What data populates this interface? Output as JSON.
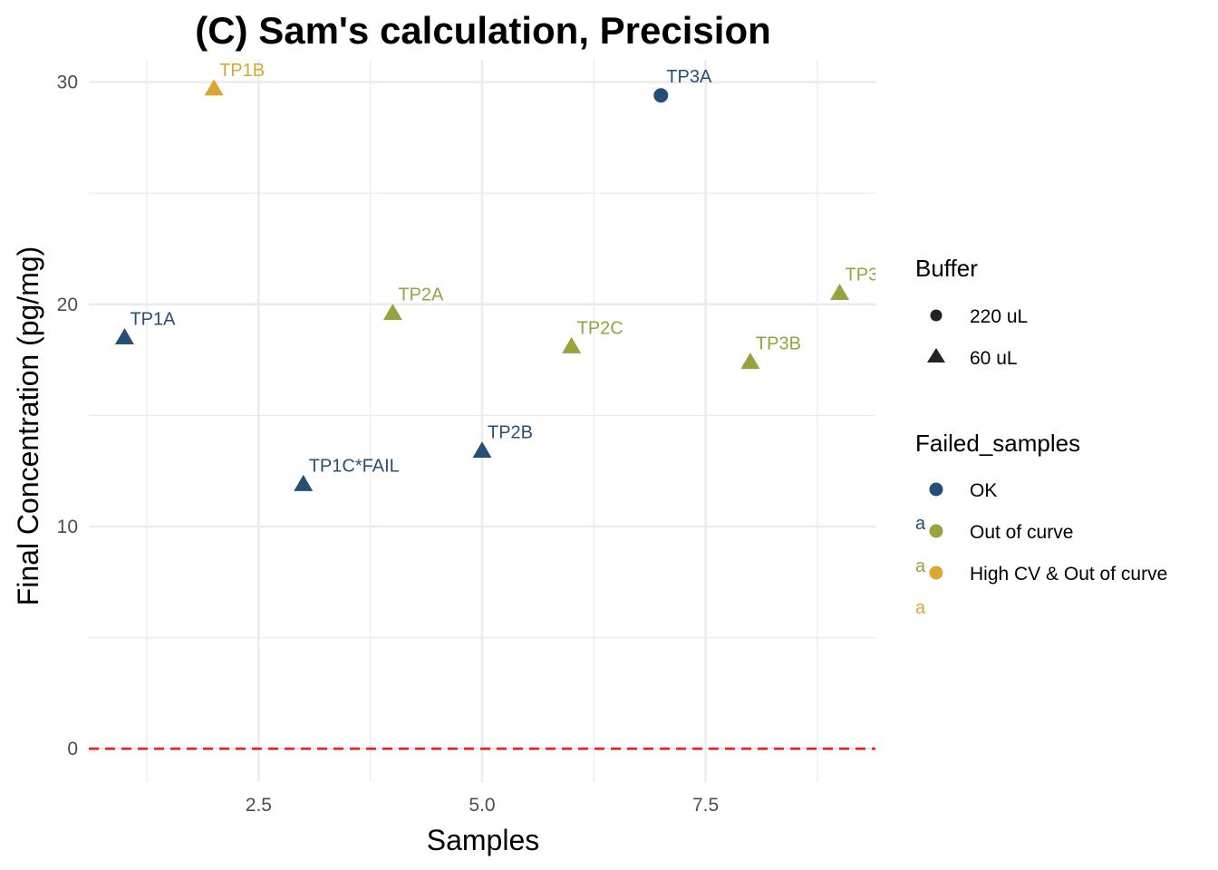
{
  "colors": {
    "ok": "#264f78",
    "out_of_curve": "#9aa23c",
    "high_cv": "#daa634",
    "zero_line": "#ee1c1c",
    "grid": "#ebebeb",
    "shape_key": "#222222"
  },
  "chart_data": {
    "type": "scatter",
    "title": "(C) Sam's calculation, Precision",
    "xlabel": "Samples",
    "ylabel": "Final Concentration (pg/mg)",
    "xlim": [
      0.6,
      9.4
    ],
    "ylim": [
      -1.5,
      31
    ],
    "xticks": [
      2.5,
      5.0,
      7.5
    ],
    "xtick_labels": [
      "2.5",
      "5.0",
      "7.5"
    ],
    "yticks": [
      0,
      10,
      20,
      30
    ],
    "ytick_labels": [
      "0",
      "10",
      "20",
      "30"
    ],
    "grid": true,
    "reference_line": {
      "y": 0,
      "style": "dashed",
      "color_key": "zero_line"
    },
    "points": [
      {
        "x": 1,
        "y": 18.5,
        "label": "TP1A",
        "buffer": "60 uL",
        "status": "OK"
      },
      {
        "x": 2,
        "y": 29.7,
        "label": "TP1B",
        "buffer": "60 uL",
        "status": "High CV & Out of curve"
      },
      {
        "x": 3,
        "y": 11.9,
        "label": "TP1C*FAIL",
        "buffer": "60 uL",
        "status": "OK"
      },
      {
        "x": 4,
        "y": 19.6,
        "label": "TP2A",
        "buffer": "60 uL",
        "status": "Out of curve"
      },
      {
        "x": 5,
        "y": 13.4,
        "label": "TP2B",
        "buffer": "60 uL",
        "status": "OK"
      },
      {
        "x": 6,
        "y": 18.1,
        "label": "TP2C",
        "buffer": "60 uL",
        "status": "Out of curve"
      },
      {
        "x": 7,
        "y": 29.4,
        "label": "TP3A",
        "buffer": "220 uL",
        "status": "OK"
      },
      {
        "x": 8,
        "y": 17.4,
        "label": "TP3B",
        "buffer": "60 uL",
        "status": "Out of curve"
      },
      {
        "x": 9,
        "y": 20.5,
        "label": "TP3",
        "buffer": "60 uL",
        "status": "Out of curve"
      }
    ],
    "legends": {
      "shape": {
        "title": "Buffer",
        "entries": [
          {
            "label": "220 uL",
            "shape": "circle"
          },
          {
            "label": "60 uL",
            "shape": "triangle"
          }
        ]
      },
      "color": {
        "title": "Failed_samples",
        "entries": [
          {
            "label": "OK",
            "color_key": "ok"
          },
          {
            "label": "Out of curve",
            "color_key": "out_of_curve"
          },
          {
            "label": "High CV & Out of curve",
            "color_key": "high_cv"
          }
        ]
      },
      "text_key_glyph": "a",
      "placement": "right"
    }
  }
}
